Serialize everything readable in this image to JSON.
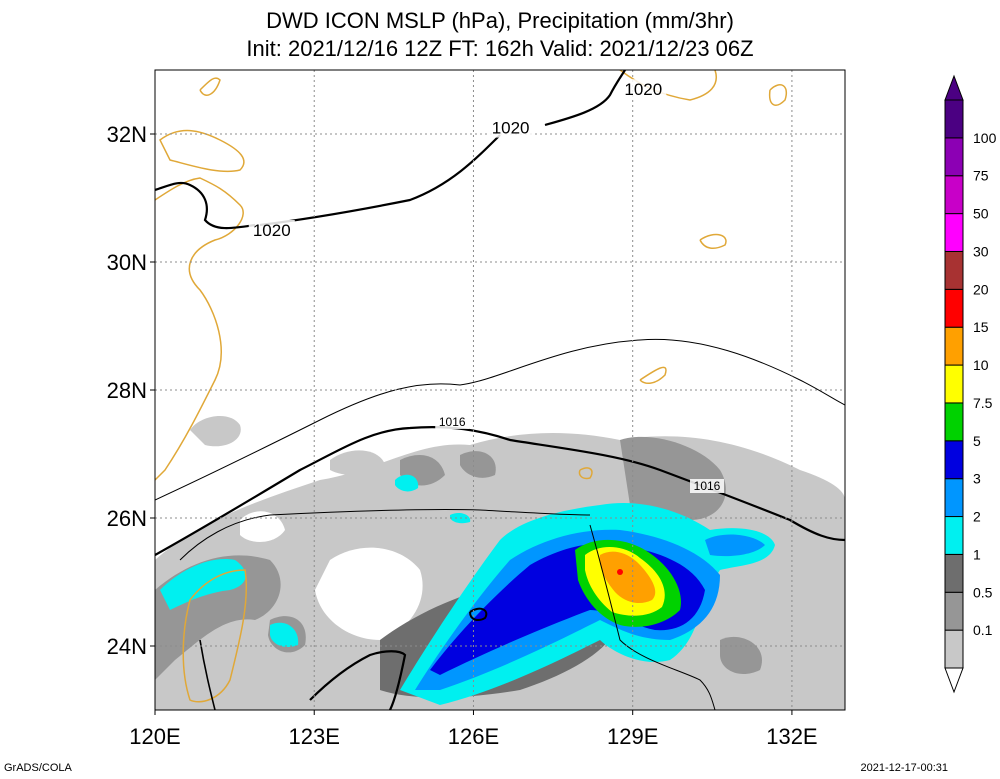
{
  "title_line1": "DWD ICON MSLP (hPa), Precipitation (mm/3hr)",
  "title_line2": "Init: 2021/12/16 12Z  FT: 162h  Valid: 2021/12/23 06Z",
  "credit": "GrADS/COLA",
  "timestamp": "2021-12-17-00:31",
  "map": {
    "lon_range": [
      120,
      133
    ],
    "lat_range": [
      23,
      33
    ],
    "lon_ticks": [
      {
        "value": 120,
        "label": "120E"
      },
      {
        "value": 123,
        "label": "123E"
      },
      {
        "value": 126,
        "label": "126E"
      },
      {
        "value": 129,
        "label": "129E"
      },
      {
        "value": 132,
        "label": "132E"
      }
    ],
    "lat_ticks": [
      {
        "value": 24,
        "label": "24N"
      },
      {
        "value": 26,
        "label": "26N"
      },
      {
        "value": 28,
        "label": "28N"
      },
      {
        "value": 30,
        "label": "30N"
      },
      {
        "value": 32,
        "label": "32N"
      }
    ],
    "grid": true,
    "coast_color": "#e0a838",
    "isobar_labels": [
      {
        "text": "1020",
        "lon": 122.2,
        "lat": 30.5
      },
      {
        "text": "1020",
        "lon": 126.7,
        "lat": 32.1
      },
      {
        "text": "1020",
        "lon": 129.2,
        "lat": 32.7
      },
      {
        "text": "1016",
        "lon": 125.6,
        "lat": 27.5
      },
      {
        "text": "1016",
        "lon": 130.4,
        "lat": 26.5
      }
    ]
  },
  "legend": {
    "levels": [
      "0.1",
      "0.5",
      "1",
      "2",
      "3",
      "5",
      "7.5",
      "10",
      "15",
      "20",
      "30",
      "50",
      "75",
      "100"
    ],
    "colors": [
      "#c8c8c8",
      "#969696",
      "#6e6e6e",
      "#00f0f0",
      "#0096ff",
      "#0000e0",
      "#00d200",
      "#ffff00",
      "#ffa000",
      "#ff0000",
      "#a83232",
      "#ff00ff",
      "#c800c8",
      "#8c00b4",
      "#4b0082"
    ]
  }
}
